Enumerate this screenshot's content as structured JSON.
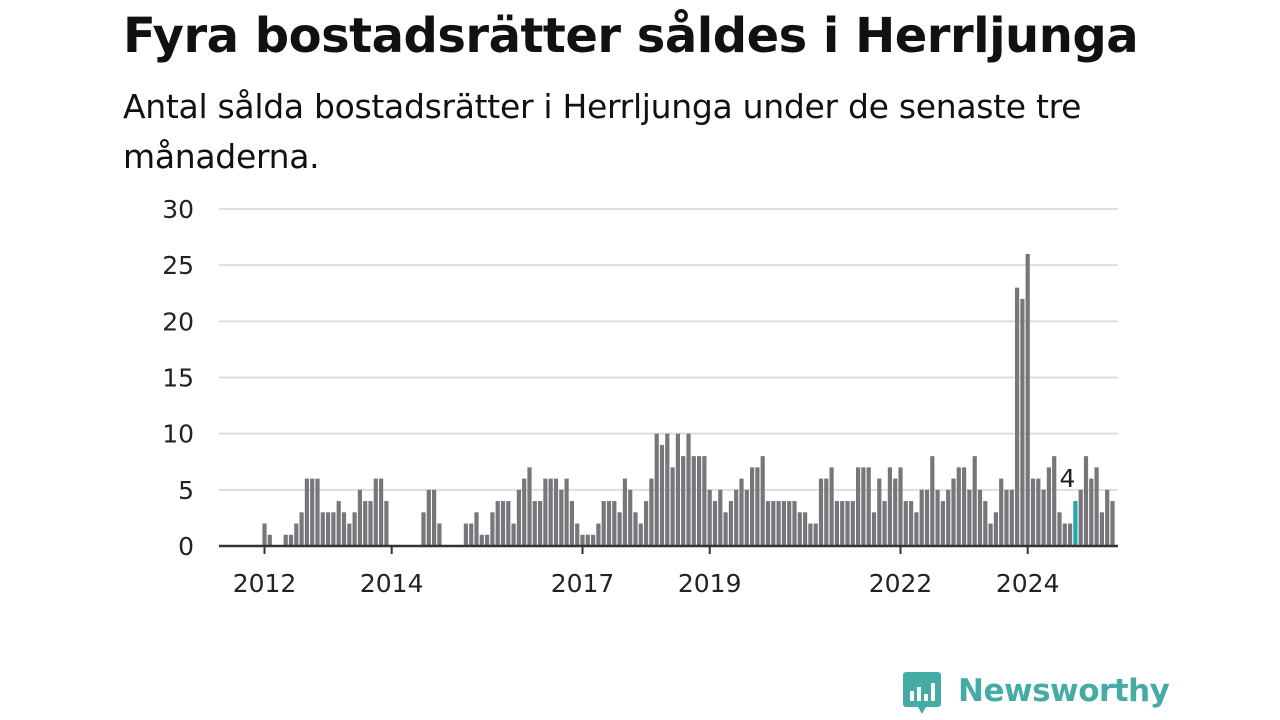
{
  "title": "Fyra bostadsrätter såldes i Herrljunga",
  "subtitle": "Antal sålda bostadsrätter i Herrljunga under de senaste tre månaderna.",
  "brand": {
    "name": "Newsworthy",
    "color": "#45aba5"
  },
  "colors": {
    "bar": "#77767b",
    "highlight": "#22a8a6",
    "grid": "#dddddd",
    "axis": "#333333",
    "text": "#222222"
  },
  "chart_data": {
    "type": "bar",
    "title": "Fyra bostadsrätter såldes i Herrljunga",
    "subtitle": "Antal sålda bostadsrätter i Herrljunga under de senaste tre månaderna.",
    "xlabel": "",
    "ylabel": "",
    "ylim": [
      0,
      30
    ],
    "yticks": [
      0,
      5,
      10,
      15,
      20,
      25,
      30
    ],
    "xticks": [
      {
        "label": "2012",
        "index": 8
      },
      {
        "label": "2014",
        "index": 32
      },
      {
        "label": "2017",
        "index": 68
      },
      {
        "label": "2019",
        "index": 92
      },
      {
        "label": "2022",
        "index": 128
      },
      {
        "label": "2024",
        "index": 152
      }
    ],
    "grid": true,
    "frequency": "rolling 3-month total, monthly",
    "highlight_index": 161,
    "annotation": "4",
    "values": [
      0,
      0,
      0,
      0,
      0,
      0,
      0,
      0,
      2,
      1,
      0,
      0,
      1,
      1,
      2,
      3,
      6,
      6,
      6,
      3,
      3,
      3,
      4,
      3,
      2,
      3,
      5,
      4,
      4,
      6,
      6,
      4,
      0,
      0,
      0,
      0,
      0,
      0,
      3,
      5,
      5,
      2,
      0,
      0,
      0,
      0,
      2,
      2,
      3,
      1,
      1,
      3,
      4,
      4,
      4,
      2,
      5,
      6,
      7,
      4,
      4,
      6,
      6,
      6,
      5,
      6,
      4,
      2,
      1,
      1,
      1,
      2,
      4,
      4,
      4,
      3,
      6,
      5,
      3,
      2,
      4,
      6,
      10,
      9,
      10,
      7,
      10,
      8,
      10,
      8,
      8,
      8,
      5,
      4,
      5,
      3,
      4,
      5,
      6,
      5,
      7,
      7,
      8,
      4,
      4,
      4,
      4,
      4,
      4,
      3,
      3,
      2,
      2,
      6,
      6,
      7,
      4,
      4,
      4,
      4,
      7,
      7,
      7,
      3,
      6,
      4,
      7,
      6,
      7,
      4,
      4,
      3,
      5,
      5,
      8,
      5,
      4,
      5,
      6,
      7,
      7,
      5,
      8,
      5,
      4,
      2,
      3,
      6,
      5,
      5,
      23,
      22,
      26,
      6,
      6,
      5,
      7,
      8,
      3,
      2,
      2,
      4,
      5,
      8,
      6,
      7,
      3,
      5,
      4
    ]
  }
}
